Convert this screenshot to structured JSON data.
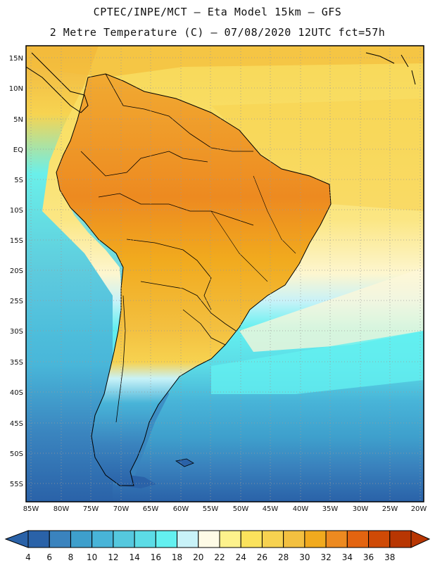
{
  "header": {
    "line1": "CPTEC/INPE/MCT –  Eta Model 15km – GFS",
    "line2": "2 Metre Temperature (C) – 07/08/2020 12UTC fct=57h"
  },
  "map": {
    "lat_labels": [
      "15N",
      "10N",
      "5N",
      "EQ",
      "5S",
      "10S",
      "15S",
      "20S",
      "25S",
      "30S",
      "35S",
      "40S",
      "45S",
      "50S",
      "55S"
    ],
    "lon_labels": [
      "85W",
      "80W",
      "75W",
      "70W",
      "65W",
      "60W",
      "55W",
      "50W",
      "45W",
      "40W",
      "35W",
      "30W",
      "25W",
      "20W"
    ]
  },
  "colorbar": {
    "levels": [
      "4",
      "6",
      "8",
      "10",
      "12",
      "14",
      "16",
      "18",
      "20",
      "22",
      "24",
      "26",
      "28",
      "30",
      "32",
      "34",
      "36",
      "38"
    ],
    "colors": [
      "#2a62a8",
      "#3a83be",
      "#3e9fcc",
      "#48b4d8",
      "#55c8de",
      "#5cdce6",
      "#63f0f0",
      "#c8f2f8",
      "#fefbe6",
      "#fdf28c",
      "#fbe25c",
      "#f7d250",
      "#f3c040",
      "#f1aa1e",
      "#ed8a20",
      "#e36410",
      "#cf4a06",
      "#b83602"
    ],
    "low_end_color": "#2a62a8",
    "high_end_color": "#b83602"
  },
  "palette": {
    "ocean_north": "#f9df5a",
    "land_hot": "#ea8a26",
    "land_warm": "#f1aa32",
    "andes": "#5cdce6"
  }
}
